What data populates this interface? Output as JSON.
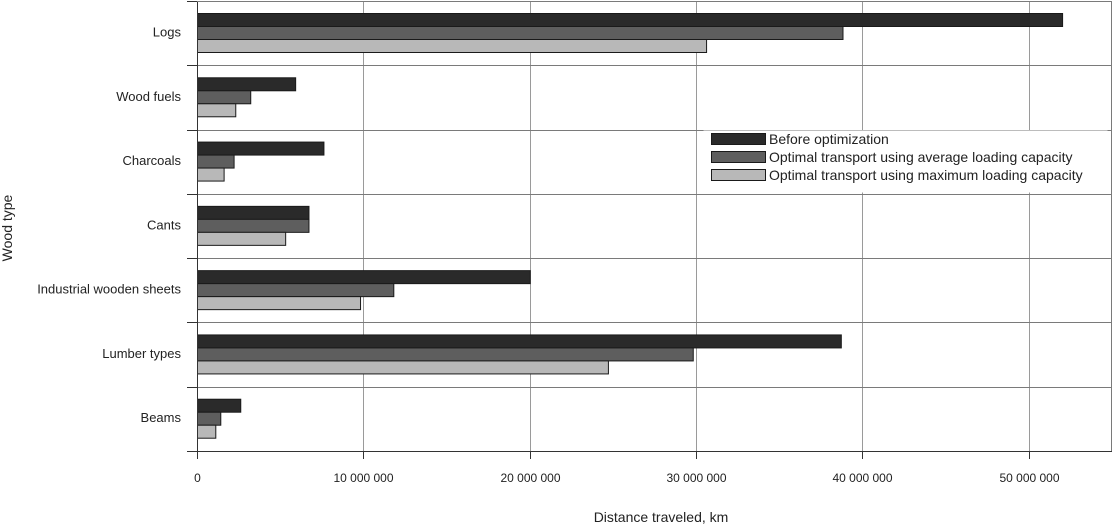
{
  "chart_data": {
    "type": "bar",
    "orientation": "horizontal",
    "xlabel": "Distance traveled, km",
    "ylabel": "Wood type",
    "xlim": [
      0,
      55000000
    ],
    "xticks": [
      0,
      10000000,
      20000000,
      30000000,
      40000000,
      50000000
    ],
    "xtick_labels": [
      "0",
      "10 000 000",
      "20 000 000",
      "30 000 000",
      "40 000 000",
      "50 000 000"
    ],
    "grid": true,
    "legend_position": "right",
    "categories": [
      "Logs",
      "Wood fuels",
      "Charcoals",
      "Cants",
      "Industrial wooden sheets",
      "Lumber types",
      "Beams"
    ],
    "series": [
      {
        "name": "Before optimization",
        "color": "#2a2a2a",
        "values": [
          52000000,
          5900000,
          7600000,
          6700000,
          20000000,
          38700000,
          2600000
        ]
      },
      {
        "name": "Optimal transport using average loading capacity",
        "color": "#5e5e5e",
        "values": [
          38800000,
          3200000,
          2200000,
          6700000,
          11800000,
          29800000,
          1400000
        ]
      },
      {
        "name": "Optimal transport using maximum loading capacity",
        "color": "#b8b8b8",
        "values": [
          30600000,
          2300000,
          1600000,
          5300000,
          9800000,
          24700000,
          1100000
        ]
      }
    ]
  }
}
